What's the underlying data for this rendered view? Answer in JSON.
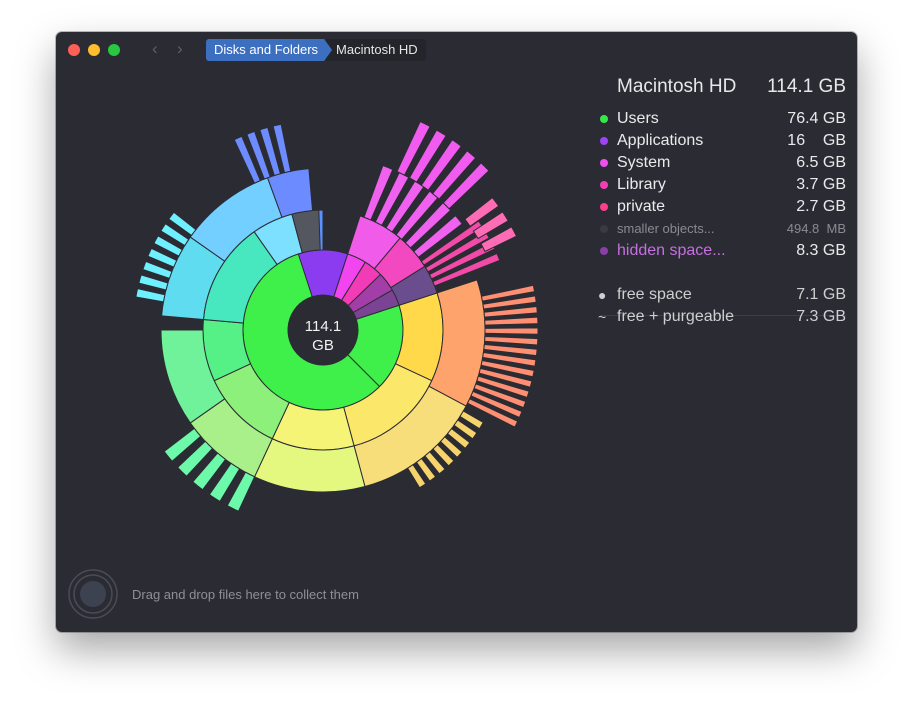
{
  "window": {
    "breadcrumb": [
      "Disks and Folders",
      "Macintosh HD"
    ]
  },
  "center": {
    "value": "114.1",
    "unit": "GB"
  },
  "legend": {
    "disk_name": "Macintosh HD",
    "disk_size": "114.1 GB",
    "items": [
      {
        "label": "Users",
        "value": "76.4 GB",
        "color": "#35e84a"
      },
      {
        "label": "Applications",
        "value": "16    GB",
        "color": "#9d45f5"
      },
      {
        "label": "System",
        "value": "6.5 GB",
        "color": "#f04ff0"
      },
      {
        "label": "Library",
        "value": "3.7 GB",
        "color": "#f43fb4"
      },
      {
        "label": "private",
        "value": "2.7 GB",
        "color": "#f8408c"
      },
      {
        "label": "smaller objects...",
        "value": "494.8  MB",
        "color": "#3a3b42"
      },
      {
        "label": "hidden space...",
        "value": "8.3 GB",
        "color": "#8a3fa8"
      }
    ],
    "free": [
      {
        "symbol": "●",
        "label": "free space",
        "value": "7.1 GB"
      },
      {
        "symbol": "~",
        "label": "free + purgeable",
        "value": "7.3 GB"
      }
    ]
  },
  "footer": {
    "hint": "Drag and drop files here to collect them"
  }
}
